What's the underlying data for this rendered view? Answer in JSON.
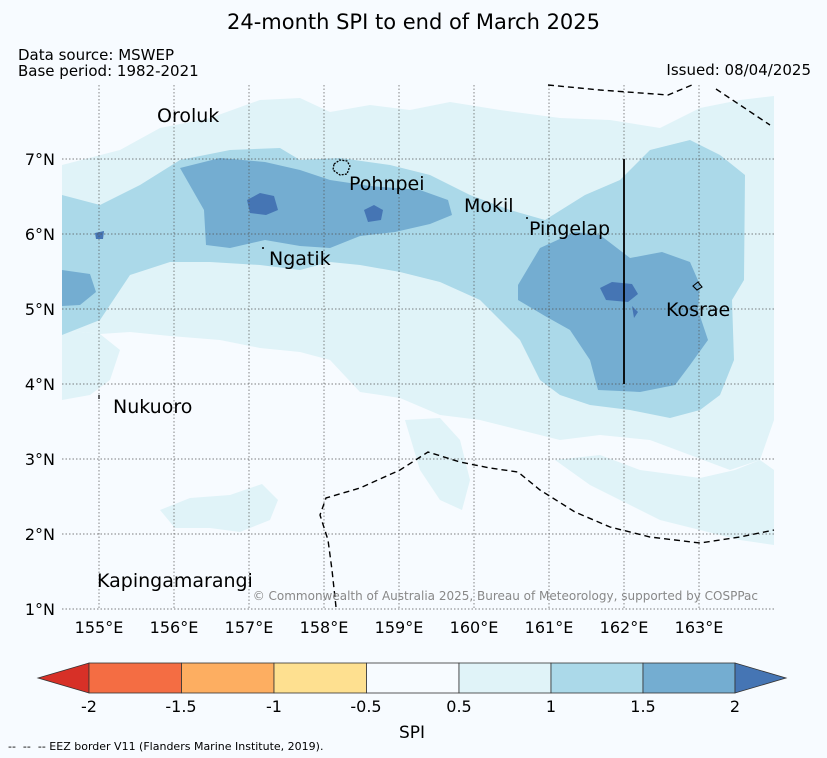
{
  "title": "24-month SPI to end of March 2025",
  "meta": {
    "data_source": "Data source: MSWEP",
    "base_period": "Base period: 1982-2021",
    "issued": "Issued: 08/04/2025"
  },
  "map": {
    "lat_ticks": [
      "1°N",
      "2°N",
      "3°N",
      "4°N",
      "5°N",
      "6°N",
      "7°N"
    ],
    "lon_ticks": [
      "155°E",
      "156°E",
      "157°E",
      "158°E",
      "159°E",
      "160°E",
      "161°E",
      "162°E",
      "163°E"
    ],
    "places": [
      {
        "name": "Oroluk"
      },
      {
        "name": "Pohnpei"
      },
      {
        "name": "Mokil"
      },
      {
        "name": "Pingelap"
      },
      {
        "name": "Ngatik"
      },
      {
        "name": "Kosrae"
      },
      {
        "name": "Nukuoro"
      },
      {
        "name": "Kapingamarangi"
      }
    ],
    "copyright": "© Commonwealth of Australia 2025, Bureau of Meteorology, supported by COSPPac"
  },
  "colorbar": {
    "label": "SPI",
    "tick_labels": [
      "-2",
      "-1.5",
      "-1",
      "-0.5",
      "0.5",
      "1",
      "1.5",
      "2"
    ],
    "bins": [
      {
        "range": "< -2",
        "color": "#d73027"
      },
      {
        "range": "-2 to -1.5",
        "color": "#f46d43"
      },
      {
        "range": "-1.5 to -1",
        "color": "#fdae61"
      },
      {
        "range": "-1 to -0.5",
        "color": "#fee090"
      },
      {
        "range": "-0.5 to 0.5",
        "color": "#f7fbff"
      },
      {
        "range": "0.5 to 1",
        "color": "#e0f3f8"
      },
      {
        "range": "1 to 1.5",
        "color": "#abd9e9"
      },
      {
        "range": "1.5 to 2",
        "color": "#74add1"
      },
      {
        "range": "> 2",
        "color": "#4575b4"
      }
    ]
  },
  "legend_footer": "--  --  -- EEZ border V11 (Flanders Marine Institute, 2019)."
}
